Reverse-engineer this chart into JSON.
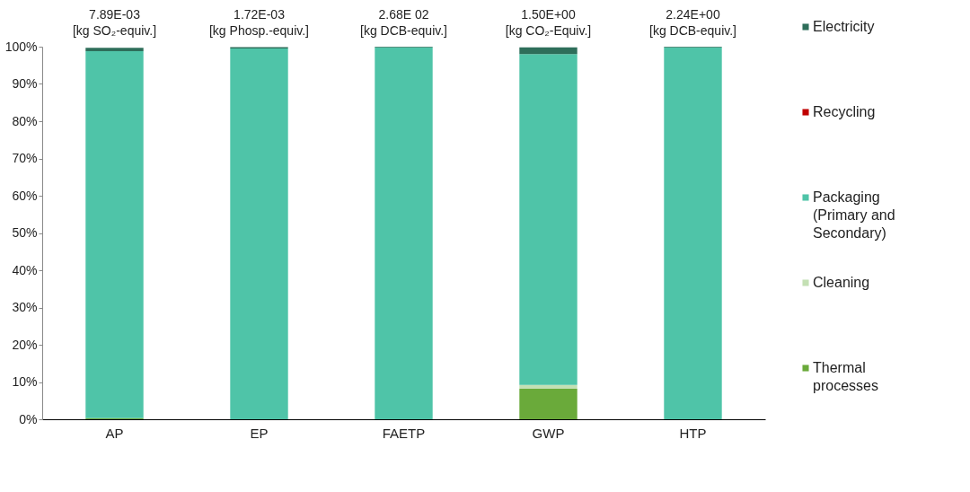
{
  "chart_data": {
    "type": "bar",
    "stacked": true,
    "categories": [
      "AP",
      "EP",
      "FAETP",
      "GWP",
      "HTP"
    ],
    "series": [
      {
        "name": "Thermal processes",
        "color": "#6aaa3a",
        "values": [
          0.3,
          0,
          0,
          8.2,
          0
        ]
      },
      {
        "name": "Cleaning",
        "color": "#c4e0b4",
        "values": [
          null,
          0,
          0,
          1.0,
          0
        ]
      },
      {
        "name": "Packaging (Primary and Secondary)",
        "color": "#4fc4a8",
        "values": [
          98.5,
          99.5,
          99.8,
          88.8,
          99.8
        ]
      },
      {
        "name": "Recycling",
        "color": "#c00000",
        "values": [
          0,
          0,
          0,
          0,
          0
        ]
      },
      {
        "name": "Electricity",
        "color": "#2e6e5a",
        "values": [
          0.9,
          0.4,
          0.2,
          1.8,
          0.2
        ]
      }
    ],
    "ylim": [
      0,
      100
    ],
    "yticks": [
      {
        "value": 0,
        "label": "0%"
      },
      {
        "value": 10,
        "label": "10%"
      },
      {
        "value": 20,
        "label": "20%"
      },
      {
        "value": 30,
        "label": "30%"
      },
      {
        "value": 40,
        "label": "40%"
      },
      {
        "value": 50,
        "label": "50%"
      },
      {
        "value": 60,
        "label": "60%"
      },
      {
        "value": 70,
        "label": "70%"
      },
      {
        "value": 80,
        "label": "80%"
      },
      {
        "value": 90,
        "label": "90%"
      },
      {
        "value": 100,
        "label": "100%"
      }
    ],
    "annotations": [
      "7.89E-03 [kg SO₂-equiv.]",
      "1.72E-03 [kg Phosp.-equiv.]",
      "2.68E 02 [kg DCB-equiv.]",
      "1.50E+00 [kg CO₂-Equiv.]",
      "2.24E+00 [kg DCB-equiv.]"
    ],
    "grid": false,
    "legend": "right"
  }
}
